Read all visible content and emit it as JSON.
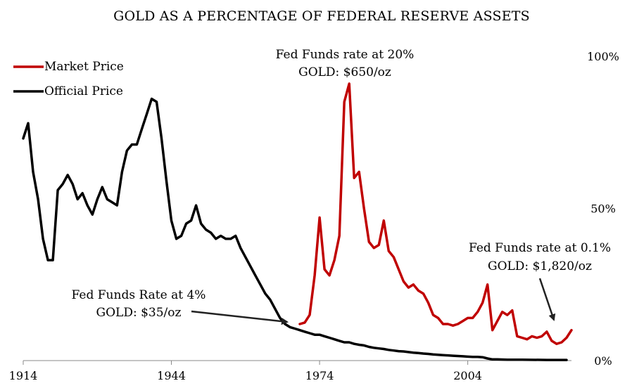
{
  "chart_data": {
    "type": "line",
    "title": "GOLD AS A PERCENTAGE OF FEDERAL RESERVE ASSETS",
    "xlabel": "",
    "ylabel": "",
    "xlim": [
      1914,
      2025
    ],
    "ylim": [
      0,
      100
    ],
    "x_ticks": [
      1914,
      1944,
      1974,
      2004
    ],
    "y_ticks": [
      {
        "value": 0,
        "label": "0%"
      },
      {
        "value": 50,
        "label": "50%"
      },
      {
        "value": 100,
        "label": "100%"
      }
    ],
    "grid": false,
    "legend_position": "top-left",
    "series": [
      {
        "name": "Official Price",
        "color": "#000000",
        "points": [
          [
            1914,
            73
          ],
          [
            1915,
            78
          ],
          [
            1916,
            62
          ],
          [
            1917,
            53
          ],
          [
            1918,
            40
          ],
          [
            1919,
            33
          ],
          [
            1920,
            33
          ],
          [
            1921,
            56
          ],
          [
            1922,
            58
          ],
          [
            1923,
            61
          ],
          [
            1924,
            58
          ],
          [
            1925,
            53
          ],
          [
            1926,
            55
          ],
          [
            1927,
            51
          ],
          [
            1928,
            48
          ],
          [
            1929,
            53
          ],
          [
            1930,
            57
          ],
          [
            1931,
            53
          ],
          [
            1932,
            52
          ],
          [
            1933,
            51
          ],
          [
            1934,
            62
          ],
          [
            1935,
            69
          ],
          [
            1936,
            71
          ],
          [
            1937,
            71
          ],
          [
            1938,
            76
          ],
          [
            1939,
            81
          ],
          [
            1940,
            86
          ],
          [
            1941,
            85
          ],
          [
            1942,
            73
          ],
          [
            1943,
            59
          ],
          [
            1944,
            46
          ],
          [
            1945,
            40
          ],
          [
            1946,
            41
          ],
          [
            1947,
            45
          ],
          [
            1948,
            46
          ],
          [
            1949,
            51
          ],
          [
            1950,
            45
          ],
          [
            1951,
            43
          ],
          [
            1952,
            42
          ],
          [
            1953,
            40
          ],
          [
            1954,
            41
          ],
          [
            1955,
            40
          ],
          [
            1956,
            40
          ],
          [
            1957,
            41
          ],
          [
            1958,
            37
          ],
          [
            1959,
            34
          ],
          [
            1960,
            31
          ],
          [
            1961,
            28
          ],
          [
            1962,
            25
          ],
          [
            1963,
            22
          ],
          [
            1964,
            20
          ],
          [
            1965,
            17
          ],
          [
            1966,
            14
          ],
          [
            1967,
            12
          ],
          [
            1968,
            11
          ],
          [
            1969,
            10.5
          ],
          [
            1970,
            10
          ],
          [
            1971,
            9.5
          ],
          [
            1972,
            9
          ],
          [
            1973,
            8.5
          ],
          [
            1974,
            8.5
          ],
          [
            1975,
            8
          ],
          [
            1976,
            7.5
          ],
          [
            1977,
            7
          ],
          [
            1978,
            6.5
          ],
          [
            1979,
            6
          ],
          [
            1980,
            6
          ],
          [
            1981,
            5.5
          ],
          [
            1982,
            5.2
          ],
          [
            1983,
            5
          ],
          [
            1984,
            4.5
          ],
          [
            1985,
            4.2
          ],
          [
            1986,
            4
          ],
          [
            1987,
            3.8
          ],
          [
            1988,
            3.5
          ],
          [
            1989,
            3.3
          ],
          [
            1990,
            3.1
          ],
          [
            1991,
            3
          ],
          [
            1992,
            2.8
          ],
          [
            1993,
            2.6
          ],
          [
            1994,
            2.5
          ],
          [
            1995,
            2.3
          ],
          [
            1996,
            2.2
          ],
          [
            1997,
            2
          ],
          [
            1998,
            1.9
          ],
          [
            1999,
            1.8
          ],
          [
            2000,
            1.7
          ],
          [
            2001,
            1.6
          ],
          [
            2002,
            1.5
          ],
          [
            2003,
            1.4
          ],
          [
            2004,
            1.3
          ],
          [
            2005,
            1.2
          ],
          [
            2006,
            1.2
          ],
          [
            2007,
            1.1
          ],
          [
            2008,
            0.7
          ],
          [
            2009,
            0.4
          ],
          [
            2010,
            0.4
          ],
          [
            2012,
            0.3
          ],
          [
            2015,
            0.3
          ],
          [
            2020,
            0.2
          ],
          [
            2024,
            0.2
          ]
        ]
      },
      {
        "name": "Market Price",
        "color": "#c00000",
        "points": [
          [
            1970,
            12
          ],
          [
            1971,
            12.5
          ],
          [
            1972,
            15
          ],
          [
            1973,
            28
          ],
          [
            1974,
            47
          ],
          [
            1975,
            30
          ],
          [
            1976,
            28
          ],
          [
            1977,
            33
          ],
          [
            1978,
            41
          ],
          [
            1979,
            85
          ],
          [
            1980,
            91
          ],
          [
            1981,
            60
          ],
          [
            1982,
            62
          ],
          [
            1983,
            50
          ],
          [
            1984,
            39
          ],
          [
            1985,
            37
          ],
          [
            1986,
            38
          ],
          [
            1987,
            46
          ],
          [
            1988,
            36
          ],
          [
            1989,
            34
          ],
          [
            1990,
            30
          ],
          [
            1991,
            26
          ],
          [
            1992,
            24
          ],
          [
            1993,
            25
          ],
          [
            1994,
            23
          ],
          [
            1995,
            22
          ],
          [
            1996,
            19
          ],
          [
            1997,
            15
          ],
          [
            1998,
            14
          ],
          [
            1999,
            12
          ],
          [
            2000,
            12
          ],
          [
            2001,
            11.5
          ],
          [
            2002,
            12
          ],
          [
            2003,
            13
          ],
          [
            2004,
            14
          ],
          [
            2005,
            14
          ],
          [
            2006,
            16
          ],
          [
            2007,
            19
          ],
          [
            2008,
            25
          ],
          [
            2009,
            10
          ],
          [
            2010,
            13
          ],
          [
            2011,
            16
          ],
          [
            2012,
            15
          ],
          [
            2013,
            16.5
          ],
          [
            2014,
            8
          ],
          [
            2015,
            7.5
          ],
          [
            2016,
            7
          ],
          [
            2017,
            8
          ],
          [
            2018,
            7.5
          ],
          [
            2019,
            8
          ],
          [
            2020,
            9.5
          ],
          [
            2021,
            6.5
          ],
          [
            2022,
            5.5
          ],
          [
            2023,
            6
          ],
          [
            2024,
            7.5
          ],
          [
            2025,
            10
          ]
        ]
      }
    ],
    "annotations": [
      {
        "lines": [
          "Fed Funds rate at 20%",
          "GOLD: $650/oz"
        ]
      },
      {
        "lines": [
          "Fed Funds Rate at 4%",
          "GOLD: $35/oz"
        ]
      },
      {
        "lines": [
          "Fed Funds rate at 0.1%",
          "GOLD: $1,820/oz"
        ]
      }
    ]
  }
}
